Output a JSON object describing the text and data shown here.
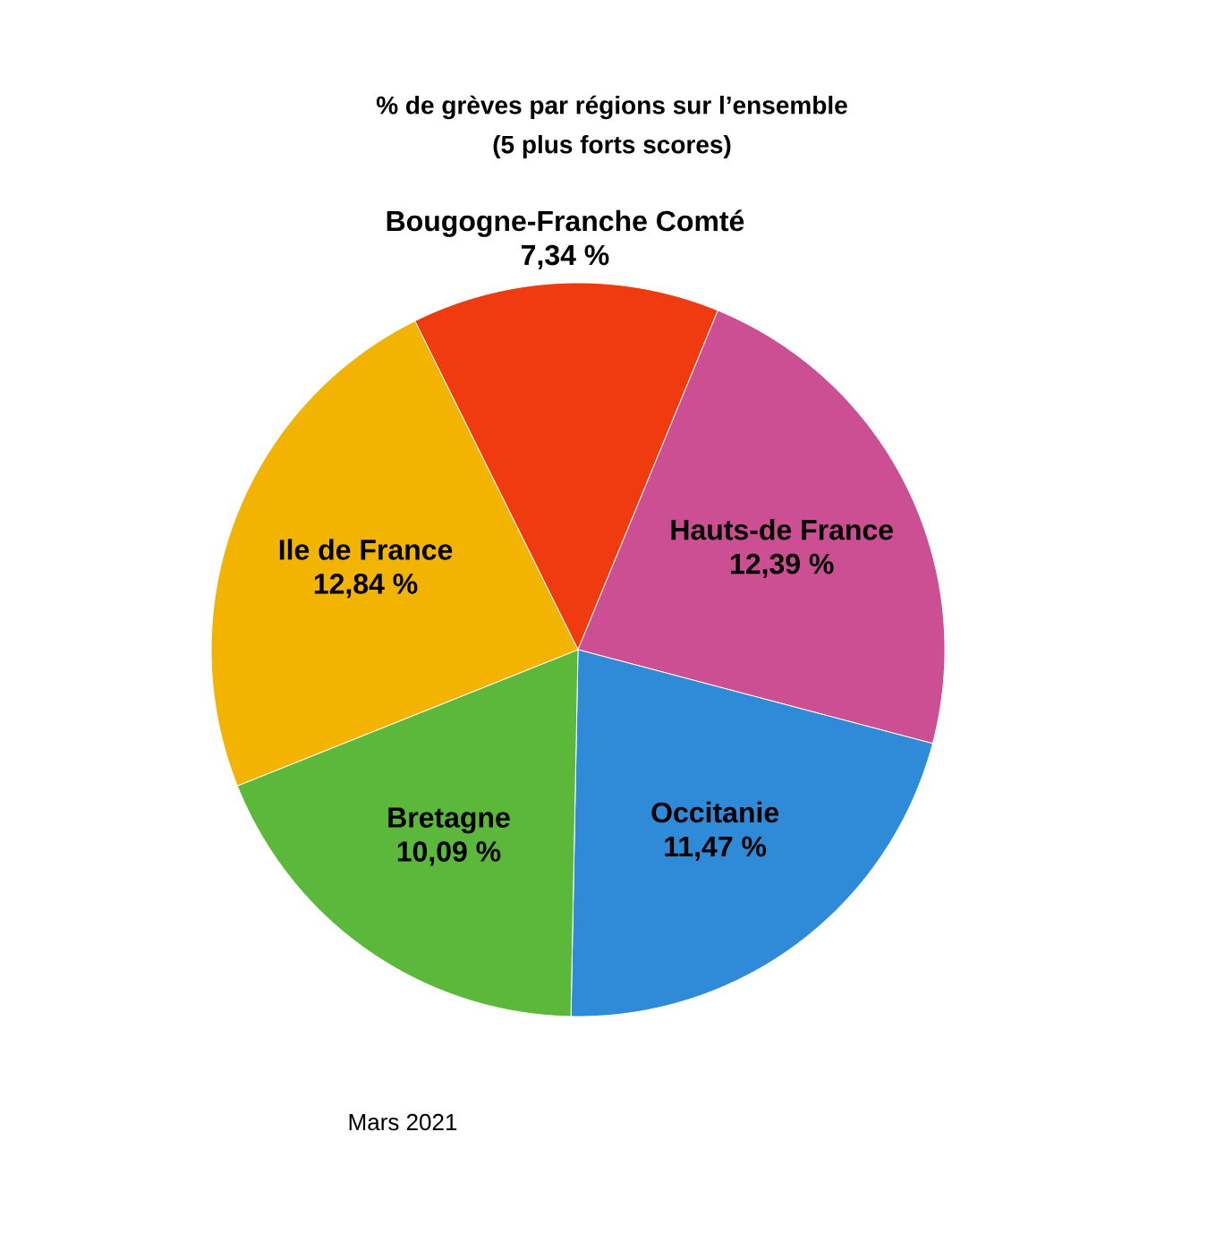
{
  "chart_data": {
    "type": "pie",
    "title": "% de grèves par régions sur l’ensemble",
    "subtitle": "(5 plus forts scores)",
    "categories": [
      "Bougogne-Franche Comté",
      "Hauts-de France",
      "Occitanie",
      "Bretagne",
      "Ile de France"
    ],
    "values": [
      7.34,
      12.39,
      11.47,
      10.09,
      12.84
    ],
    "value_labels": [
      "7,34 %",
      "12,39 %",
      "11,47 %",
      "10,09 %",
      "12,84 %"
    ],
    "colors": [
      "#f03a10",
      "#cc4f93",
      "#2f8ad8",
      "#5bb83a",
      "#f2b400"
    ],
    "annotations": [
      "Mars 2021"
    ]
  }
}
